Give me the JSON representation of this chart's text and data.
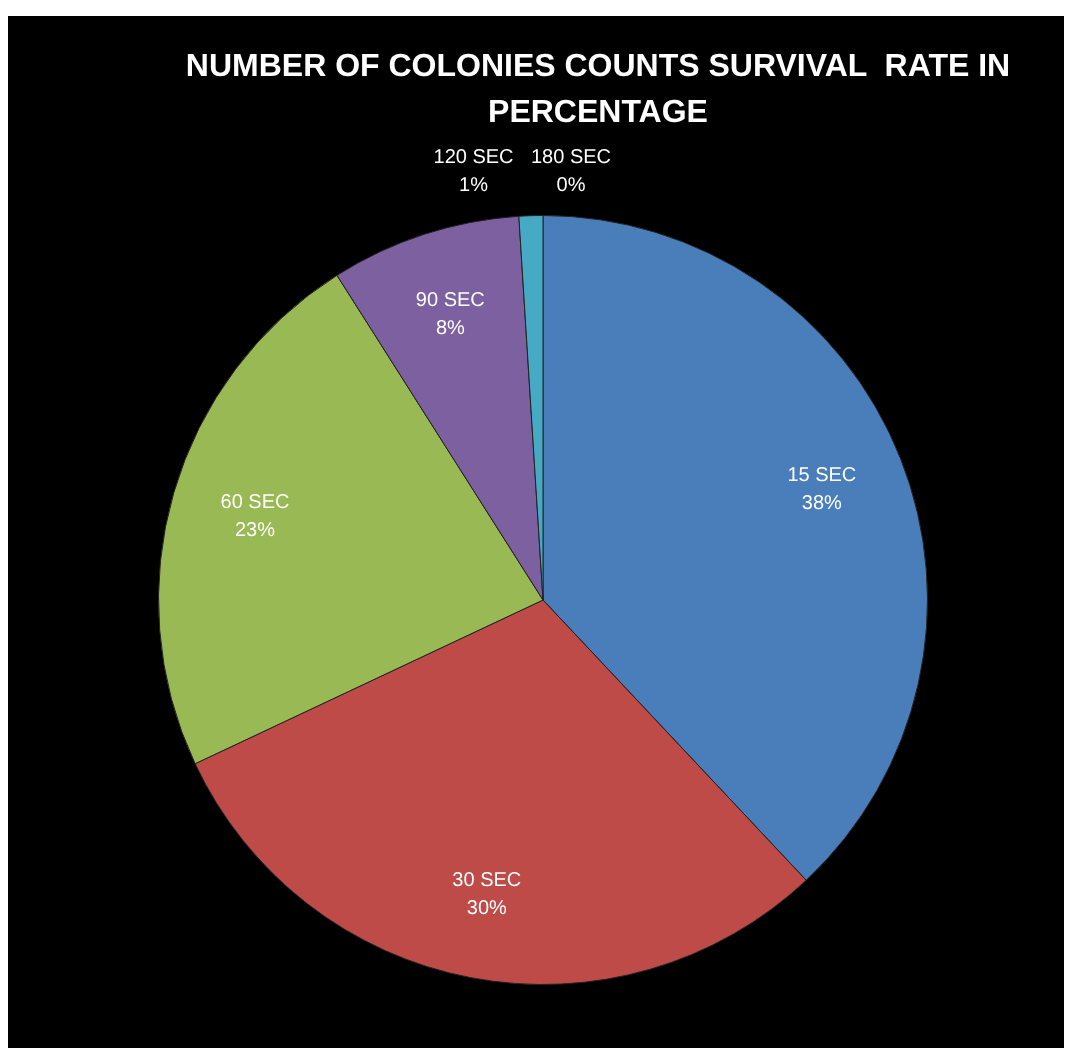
{
  "chart_data": {
    "type": "pie",
    "title": "NUMBER OF COLONIES COUNTS SURVIVAL  RATE IN PERCENTAGE",
    "categories": [
      "15 SEC",
      "30 SEC",
      "60 SEC",
      "90 SEC",
      "120 SEC",
      "180 SEC"
    ],
    "values": [
      38,
      30,
      23,
      8,
      1,
      0
    ],
    "value_labels": [
      "38%",
      "30%",
      "23%",
      "8%",
      "1%",
      "0%"
    ],
    "colors": [
      "#4a7ebb",
      "#be4b48",
      "#98b954",
      "#7d60a0",
      "#46aac5",
      "#f79646"
    ],
    "legend": false
  }
}
